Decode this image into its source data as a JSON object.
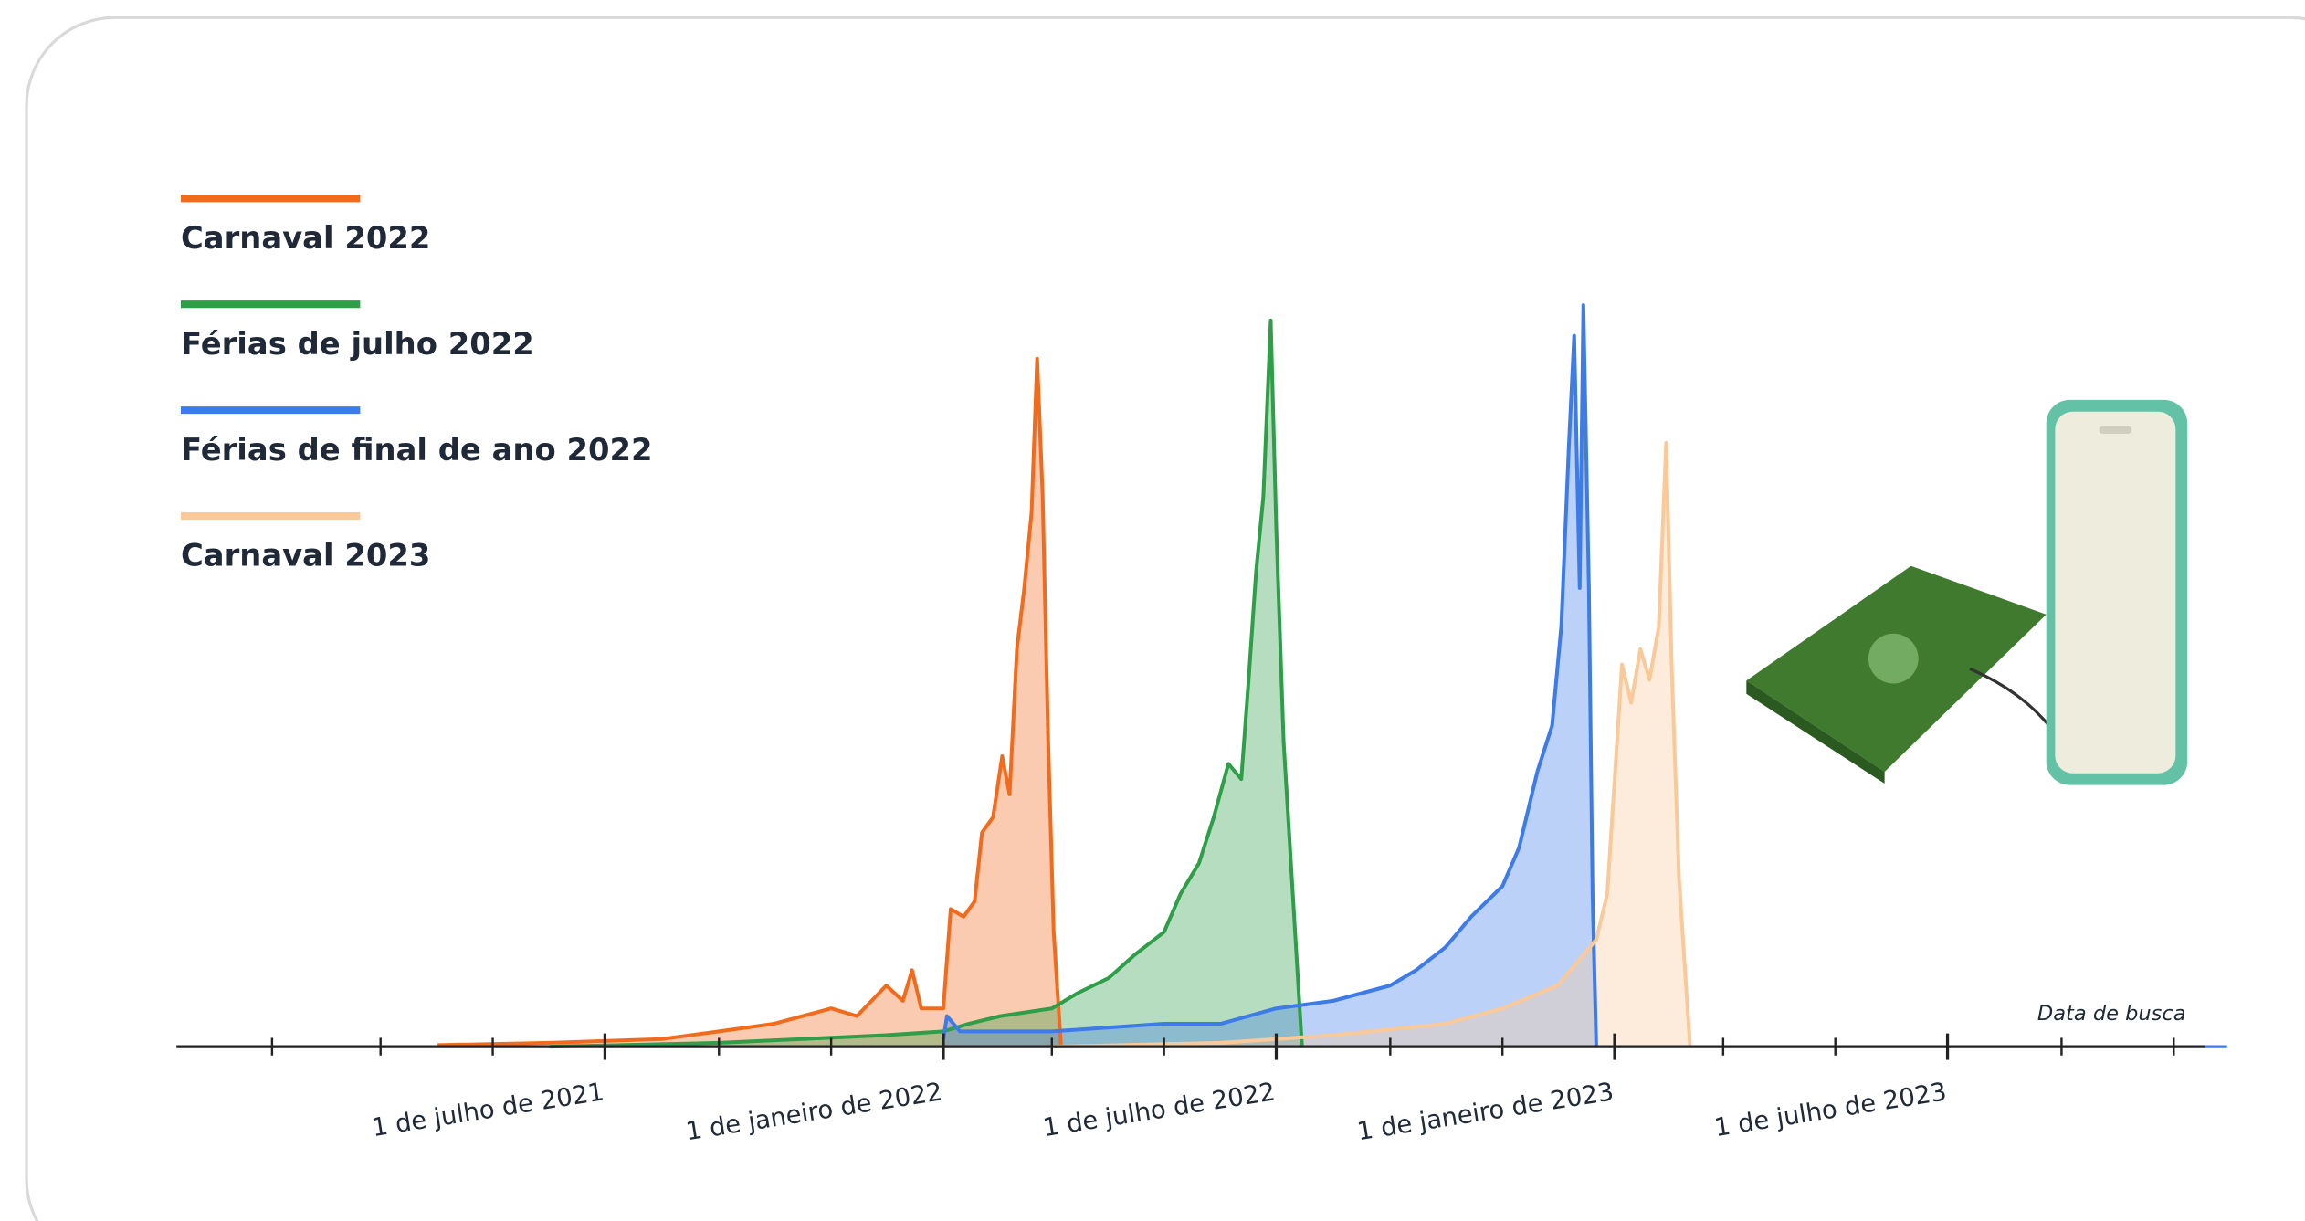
{
  "chart_data": {
    "type": "area",
    "x_label": "Data de busca",
    "legend": "top-left",
    "xlim": [
      "2020-11-10",
      "2023-11-30"
    ],
    "ylim": [
      0,
      100
    ],
    "xticks": [
      {
        "value": "2021-07-01",
        "label": "1 de julho de 2021"
      },
      {
        "value": "2022-01-01",
        "label": "1 de janeiro de 2022"
      },
      {
        "value": "2022-07-01",
        "label": "1 de julho de 2022"
      },
      {
        "value": "2023-01-01",
        "label": "1 de janeiro de 2023"
      },
      {
        "value": "2023-07-01",
        "label": "1 de julho de 2023"
      }
    ],
    "xminorticks": [
      "2021-01-01",
      "2021-03-01",
      "2021-05-01",
      "2021-09-01",
      "2021-11-01",
      "2022-03-01",
      "2022-05-01",
      "2022-09-01",
      "2022-11-01",
      "2023-03-01",
      "2023-05-01",
      "2023-09-01",
      "2023-11-01"
    ],
    "series": [
      {
        "name": "Carnaval 2022",
        "color": "#f26b1d",
        "x": [
          "2021-04-01",
          "2021-06-01",
          "2021-08-01",
          "2021-09-01",
          "2021-10-01",
          "2021-11-01",
          "2021-11-15",
          "2021-12-01",
          "2021-12-10",
          "2021-12-15",
          "2021-12-20",
          "2022-01-01",
          "2022-01-05",
          "2022-01-12",
          "2022-01-18",
          "2022-01-22",
          "2022-01-28",
          "2022-02-02",
          "2022-02-06",
          "2022-02-10",
          "2022-02-14",
          "2022-02-18",
          "2022-02-21",
          "2022-02-24",
          "2022-02-27",
          "2022-03-02",
          "2022-03-06"
        ],
        "values": [
          0.2,
          0.5,
          1,
          2,
          3,
          5,
          4,
          8,
          6,
          10,
          5,
          5,
          18,
          17,
          19,
          28,
          30,
          38,
          33,
          52,
          60,
          70,
          90,
          72,
          40,
          15,
          0
        ]
      },
      {
        "name": "Férias de julho 2022",
        "color": "#2e9e48",
        "x": [
          "2021-06-01",
          "2021-09-01",
          "2021-12-01",
          "2022-01-01",
          "2022-01-15",
          "2022-02-01",
          "2022-03-01",
          "2022-03-15",
          "2022-04-01",
          "2022-04-15",
          "2022-05-01",
          "2022-05-10",
          "2022-05-20",
          "2022-05-28",
          "2022-06-05",
          "2022-06-12",
          "2022-06-16",
          "2022-06-20",
          "2022-06-24",
          "2022-06-28",
          "2022-07-01",
          "2022-07-05",
          "2022-07-10",
          "2022-07-15"
        ],
        "values": [
          0,
          0.5,
          1.5,
          2,
          3,
          4,
          5,
          7,
          9,
          12,
          15,
          20,
          24,
          30,
          37,
          35,
          48,
          62,
          72,
          95,
          68,
          40,
          20,
          0
        ]
      },
      {
        "name": "Férias de final de ano 2022",
        "color": "#3d7be8",
        "x": [
          "2022-01-01",
          "2022-01-03",
          "2022-01-10",
          "2022-03-01",
          "2022-05-01",
          "2022-06-01",
          "2022-07-01",
          "2022-08-01",
          "2022-09-01",
          "2022-09-15",
          "2022-10-01",
          "2022-10-15",
          "2022-11-01",
          "2022-11-10",
          "2022-11-20",
          "2022-11-28",
          "2022-12-03",
          "2022-12-07",
          "2022-12-10",
          "2022-12-13",
          "2022-12-15",
          "2022-12-18",
          "2022-12-20",
          "2022-12-22"
        ],
        "values": [
          1,
          4,
          2,
          2,
          3,
          3,
          5,
          6,
          8,
          10,
          13,
          17,
          21,
          26,
          36,
          42,
          55,
          78,
          93,
          60,
          97,
          60,
          20,
          0
        ]
      },
      {
        "name": "Carnaval 2023",
        "color": "#f9c99a",
        "x": [
          "2022-03-01",
          "2022-06-01",
          "2022-08-01",
          "2022-10-01",
          "2022-11-01",
          "2022-12-01",
          "2022-12-15",
          "2022-12-22",
          "2022-12-28",
          "2023-01-01",
          "2023-01-05",
          "2023-01-10",
          "2023-01-15",
          "2023-01-20",
          "2023-01-25",
          "2023-01-29",
          "2023-02-01",
          "2023-02-05",
          "2023-02-11"
        ],
        "values": [
          0,
          0.5,
          1.5,
          3,
          5,
          8,
          12,
          14,
          20,
          35,
          50,
          45,
          52,
          48,
          55,
          79,
          50,
          22,
          0
        ]
      }
    ]
  }
}
